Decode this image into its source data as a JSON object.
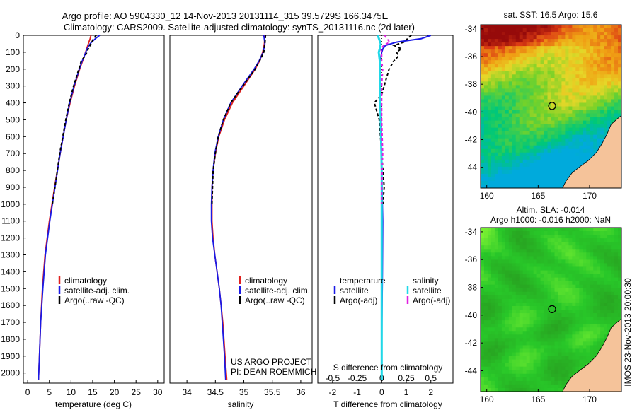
{
  "header": {
    "line1": "Argo profile: AO 5904330_12 14-Nov-2013 20131114_315 39.5729S 166.3475E",
    "line2": "Climatology: CARS2009. Satellite-adjusted climatology: synTS_20131116.nc (2d later)"
  },
  "credits": {
    "line1": "US ARGO PROJECT",
    "line2": "PI: DEAN ROEMMICH"
  },
  "side_stamp": "IMOS 23-Nov-2013 20:00:30",
  "colors": {
    "climatology": "#e0201e",
    "satellite": "#1a1ae6",
    "argo": "#000000",
    "sat_salinity": "#20d8e8",
    "argo_salinity": "#e020e0",
    "land": "#f5c39a"
  },
  "chart_data": [
    {
      "id": "temperature",
      "type": "line",
      "xlabel": "temperature (deg C)",
      "ylabel": "",
      "xlim": [
        -1,
        31.5
      ],
      "ylim": [
        0,
        2060
      ],
      "y_inverted": true,
      "xticks": [
        0,
        5,
        10,
        15,
        20,
        25,
        30
      ],
      "yticks": [
        0,
        100,
        200,
        300,
        400,
        500,
        600,
        700,
        800,
        900,
        1000,
        1100,
        1200,
        1300,
        1400,
        1500,
        1600,
        1700,
        1800,
        1900,
        2000
      ],
      "legend": [
        "climatology",
        "satellite-adj. clim.",
        "Argo(..raw -QC)"
      ],
      "legend_position": "lower-center",
      "series": [
        {
          "name": "climatology",
          "depth": [
            0,
            20,
            50,
            80,
            120,
            150,
            200,
            300,
            400,
            500,
            700,
            900,
            1100,
            1300,
            1500,
            1700,
            1900,
            2040
          ],
          "values": [
            14.6,
            14.4,
            14.0,
            13.6,
            13.1,
            12.7,
            12.0,
            10.8,
            9.8,
            8.9,
            7.5,
            6.2,
            5.0,
            4.0,
            3.4,
            3.0,
            2.7,
            2.5
          ]
        },
        {
          "name": "satellite-adj. clim.",
          "depth": [
            0,
            20,
            50,
            80,
            120,
            150,
            200,
            300,
            400,
            500,
            700,
            900,
            1100,
            1300,
            1500,
            1700,
            1900,
            2040
          ],
          "values": [
            16.6,
            15.6,
            14.4,
            13.7,
            13.1,
            12.6,
            11.9,
            10.7,
            9.7,
            8.9,
            7.5,
            6.3,
            5.1,
            4.1,
            3.5,
            3.0,
            2.7,
            2.5
          ]
        },
        {
          "name": "Argo(..raw -QC)",
          "depth": [
            0,
            20,
            50,
            80,
            120,
            150,
            200,
            300,
            400,
            500,
            700,
            900,
            1000
          ],
          "values": [
            15.8,
            15.2,
            14.6,
            14.0,
            13.3,
            12.4,
            11.8,
            10.6,
            9.6,
            8.8,
            7.4,
            6.3,
            5.7
          ]
        }
      ]
    },
    {
      "id": "salinity",
      "type": "line",
      "xlabel": "salinity",
      "ylabel": "",
      "xlim": [
        33.7,
        36.2
      ],
      "ylim": [
        0,
        2060
      ],
      "y_inverted": true,
      "xticks": [
        34,
        34.5,
        35,
        35.5,
        36
      ],
      "legend": [
        "climatology",
        "satellite-adj. clim.",
        "Argo(..raw -QC)"
      ],
      "legend_position": "lower-center",
      "series": [
        {
          "name": "climatology",
          "depth": [
            0,
            50,
            100,
            150,
            200,
            300,
            400,
            500,
            600,
            700,
            800,
            900,
            1000,
            1100,
            1200,
            1300,
            1400,
            1500,
            1600,
            1700,
            1800,
            1900,
            2040
          ],
          "values": [
            35.37,
            35.36,
            35.33,
            35.28,
            35.2,
            35.0,
            34.8,
            34.66,
            34.56,
            34.5,
            34.46,
            34.44,
            34.44,
            34.44,
            34.46,
            34.49,
            34.53,
            34.57,
            34.6,
            34.63,
            34.65,
            34.67,
            34.7
          ]
        },
        {
          "name": "satellite-adj. clim.",
          "depth": [
            0,
            50,
            100,
            150,
            200,
            300,
            400,
            500,
            600,
            700,
            800,
            900,
            1000,
            1100,
            1200,
            1300,
            1400,
            1500,
            1600,
            1700,
            1800,
            1900,
            2040
          ],
          "values": [
            35.35,
            35.37,
            35.34,
            35.27,
            35.18,
            34.97,
            34.77,
            34.64,
            34.55,
            34.49,
            34.46,
            34.44,
            34.43,
            34.43,
            34.45,
            34.49,
            34.53,
            34.57,
            34.6,
            34.62,
            34.64,
            34.66,
            34.68
          ]
        },
        {
          "name": "Argo(..raw -QC)",
          "depth": [
            0,
            50,
            100,
            150,
            200,
            300,
            400,
            500,
            600,
            700,
            800,
            900,
            1000
          ],
          "values": [
            35.38,
            35.37,
            35.35,
            35.28,
            35.2,
            34.98,
            34.77,
            34.64,
            34.55,
            34.5,
            34.46,
            34.45,
            34.44
          ]
        }
      ]
    },
    {
      "id": "difference",
      "type": "line",
      "xlabel": "T difference from climatology",
      "x2label": "S difference from climatology",
      "ylabel": "",
      "xlim": [
        -2.6,
        2.9
      ],
      "x2lim": [
        -0.65,
        0.725
      ],
      "ylim": [
        0,
        2060
      ],
      "y_inverted": true,
      "xticks": [
        -2,
        -1,
        0,
        1,
        2
      ],
      "x2ticks": [
        -0.5,
        -0.25,
        0,
        0.25,
        0.5
      ],
      "x2ticklabels": [
        "-0.5",
        "-0.25",
        "0",
        "0.25",
        "0.5"
      ],
      "legend_temperature_title": "temperature",
      "legend_salinity_title": "salinity",
      "legend_temperature": [
        "satellite",
        "Argo(-adj)"
      ],
      "legend_salinity": [
        "satellite",
        "Argo(-adj)"
      ],
      "legend_position": "lower-center",
      "series": [
        {
          "name": "satellite",
          "quantity": "temperature",
          "depth": [
            0,
            20,
            40,
            60,
            80,
            100,
            150,
            200,
            300,
            500,
            800,
            1100,
            1400,
            1700,
            2040
          ],
          "values": [
            2.0,
            1.6,
            0.6,
            0.15,
            0.05,
            0.0,
            -0.05,
            -0.06,
            -0.05,
            -0.02,
            0.0,
            0.04,
            0.03,
            0.01,
            0.0
          ]
        },
        {
          "name": "Argo(-adj)",
          "quantity": "temperature",
          "depth": [
            0,
            40,
            60,
            80,
            100,
            120,
            150,
            200,
            250,
            300,
            350,
            400,
            500,
            700,
            900,
            1000
          ],
          "values": [
            1.2,
            0.9,
            0.5,
            0.8,
            0.6,
            0.7,
            0.5,
            0.3,
            0.2,
            0.1,
            0.0,
            -0.3,
            -0.1,
            0.0,
            0.1,
            0.05
          ]
        },
        {
          "name": "satellite",
          "quantity": "salinity",
          "depth": [
            0,
            50,
            80,
            100,
            150,
            200,
            300,
            500,
            800,
            1100,
            1400,
            1700,
            2040
          ],
          "values": [
            -0.04,
            -0.01,
            -0.02,
            -0.03,
            -0.02,
            -0.02,
            -0.02,
            -0.01,
            0.0,
            0.0,
            0.0,
            0.0,
            0.0
          ]
        },
        {
          "name": "Argo(-adj)",
          "quantity": "salinity",
          "depth": [
            0,
            40,
            60,
            80,
            100,
            150,
            200,
            300,
            500,
            700,
            900,
            1000
          ],
          "values": [
            0.03,
            0.08,
            0.02,
            -0.01,
            0.0,
            0.0,
            0.01,
            0.0,
            0.0,
            0.01,
            0.0,
            0.0
          ]
        }
      ]
    },
    {
      "id": "sst-map",
      "type": "heatmap",
      "title": "sat. SST: 16.5 Argo: 15.6",
      "xlim": [
        159.4,
        173.1
      ],
      "ylim": [
        -45.5,
        -33.7
      ],
      "xticks": [
        160,
        165,
        170
      ],
      "yticks": [
        -34,
        -36,
        -38,
        -40,
        -42,
        -44
      ],
      "marker": {
        "lon": 166.35,
        "lat": -39.57
      },
      "colormap": "jet"
    },
    {
      "id": "sla-map",
      "type": "heatmap",
      "title": "Altim. SLA: -0.014",
      "subtitle": "Argo h1000: -0.016 h2000: NaN",
      "xlim": [
        159.4,
        173.1
      ],
      "ylim": [
        -45.5,
        -33.7
      ],
      "xticks": [
        160,
        165,
        170
      ],
      "yticks": [
        -34,
        -36,
        -38,
        -40,
        -42,
        -44
      ],
      "marker": {
        "lon": 166.35,
        "lat": -39.57
      },
      "colormap": "green"
    }
  ]
}
